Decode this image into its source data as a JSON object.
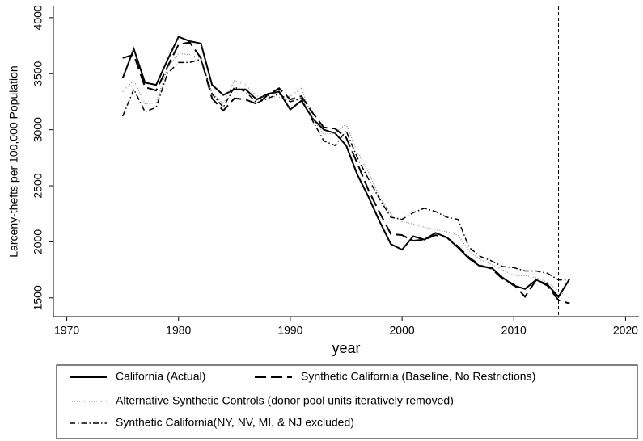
{
  "chart_data": {
    "type": "line",
    "y_label": "Larceny-thefts per 100,000 Population",
    "x_label": "year",
    "x": [
      1975,
      1976,
      1977,
      1978,
      1979,
      1980,
      1981,
      1982,
      1983,
      1984,
      1985,
      1986,
      1987,
      1988,
      1989,
      1990,
      1991,
      1992,
      1993,
      1994,
      1995,
      1996,
      1997,
      1998,
      1999,
      2000,
      2001,
      2002,
      2003,
      2004,
      2005,
      2006,
      2007,
      2008,
      2009,
      2010,
      2011,
      2012,
      2013,
      2014,
      2015
    ],
    "series": [
      {
        "name": "California (Actual)",
        "color": "#000000",
        "style": "solid",
        "values": [
          3460,
          3720,
          3420,
          3400,
          3620,
          3830,
          3790,
          3770,
          3400,
          3310,
          3360,
          3360,
          3270,
          3320,
          3340,
          3180,
          3260,
          3100,
          3000,
          2970,
          2860,
          2600,
          2400,
          2180,
          1980,
          1930,
          2050,
          2020,
          2080,
          2040,
          1950,
          1850,
          1780,
          1770,
          1680,
          1610,
          1580,
          1660,
          1620,
          1510,
          1670
        ]
      },
      {
        "name": "Synthetic California (Baseline, No Restrictions)",
        "color": "#000000",
        "style": "longdash",
        "values": [
          3640,
          3670,
          3380,
          3350,
          3560,
          3760,
          3780,
          3640,
          3280,
          3170,
          3280,
          3270,
          3230,
          3310,
          3370,
          3270,
          3300,
          3150,
          3020,
          3010,
          2930,
          2700,
          2460,
          2260,
          2070,
          2060,
          2010,
          2020,
          2060,
          2040,
          1960,
          1860,
          1790,
          1760,
          1670,
          1620,
          1510,
          1660,
          1610,
          1480,
          1450
        ]
      },
      {
        "name": "Alternative Synthetic Controls (donor pool units iteratively removed)",
        "color": "#777777",
        "style": "dotted",
        "values": [
          3340,
          3440,
          3230,
          3240,
          3550,
          3680,
          3670,
          3640,
          3330,
          3230,
          3440,
          3400,
          3300,
          3300,
          3290,
          3300,
          3370,
          3100,
          2960,
          2970,
          3050,
          2800,
          2620,
          2400,
          2250,
          2180,
          2160,
          2130,
          2110,
          2090,
          2060,
          1920,
          1840,
          1800,
          1750,
          1700,
          1700,
          1680,
          1640,
          1560,
          1500
        ]
      },
      {
        "name": "Synthetic California(NY, NV, MI, & NJ excluded)",
        "color": "#000000",
        "style": "dashdot",
        "values": [
          3120,
          3360,
          3160,
          3200,
          3500,
          3600,
          3600,
          3630,
          3320,
          3200,
          3380,
          3340,
          3240,
          3280,
          3320,
          3250,
          3280,
          3080,
          2900,
          2860,
          2990,
          2750,
          2560,
          2380,
          2220,
          2200,
          2260,
          2300,
          2270,
          2220,
          2200,
          1950,
          1870,
          1830,
          1780,
          1770,
          1740,
          1740,
          1720,
          1660,
          1660
        ]
      }
    ],
    "xlim": [
      1968.8,
      2021.2
    ],
    "xticks": [
      1970,
      1980,
      1990,
      2000,
      2010,
      2020
    ],
    "ylim": [
      1333,
      4100
    ],
    "yticks": [
      1500,
      2000,
      2500,
      3000,
      3500,
      4000
    ],
    "vline": 2014
  }
}
